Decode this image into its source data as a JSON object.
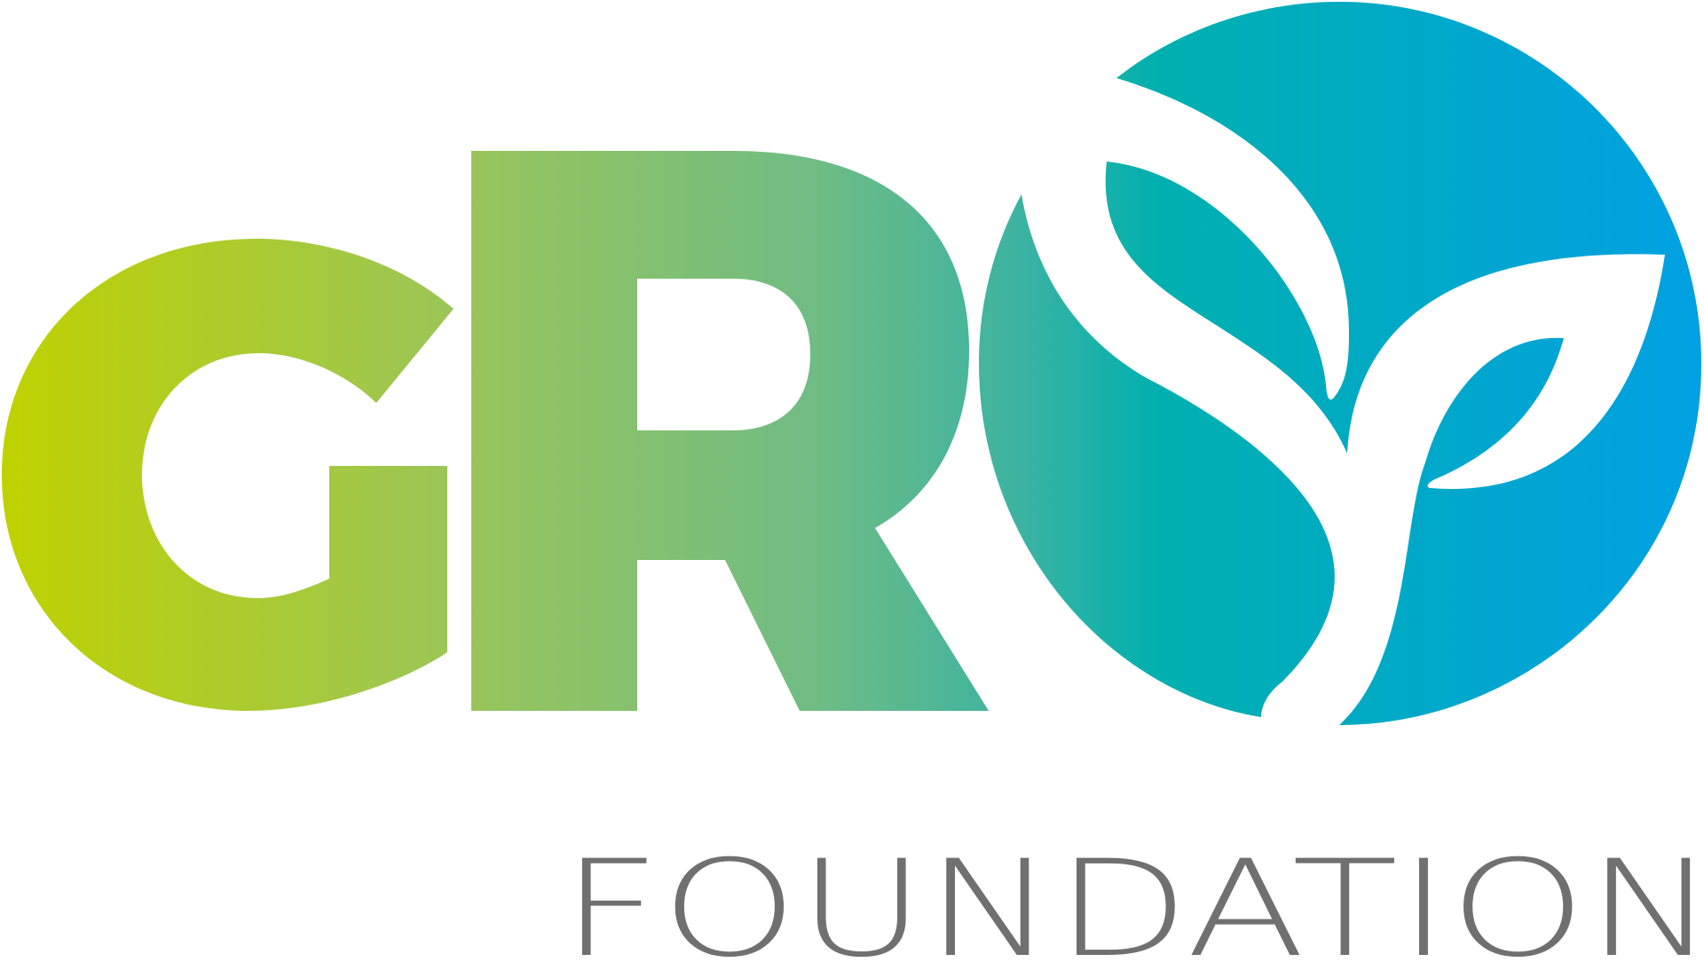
{
  "logo": {
    "wordmark": "GRO",
    "tagline": "FOUNDATION",
    "colors": {
      "gradient_start": "#bdd000",
      "gradient_mid": "#8cc063",
      "gradient_teal": "#00b0ae",
      "gradient_end": "#009fe3",
      "tagline_gray": "#707070"
    }
  }
}
